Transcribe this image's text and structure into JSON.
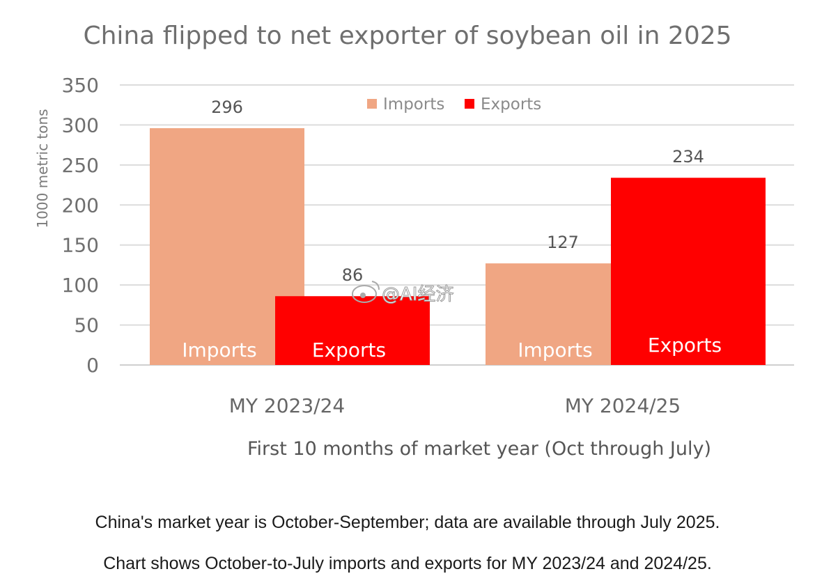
{
  "chart_data": {
    "type": "bar",
    "title": "China flipped to net exporter of soybean oil in 2025",
    "xlabel": "First 10 months of market year (Oct through July)",
    "ylabel": "1000 metric tons",
    "categories": [
      "MY 2023/24",
      "MY 2024/25"
    ],
    "series": [
      {
        "name": "Imports",
        "values": [
          296,
          127
        ],
        "color": "#f0a683"
      },
      {
        "name": "Exports",
        "values": [
          86,
          234
        ],
        "color": "#ff0000"
      }
    ],
    "in_bar_labels": [
      "Imports",
      "Exports"
    ],
    "ylim": [
      0,
      350
    ],
    "yticks": [
      0,
      50,
      100,
      150,
      200,
      250,
      300,
      350
    ],
    "grid": true,
    "legend_position": "top-center",
    "watermark": "@AI经济"
  },
  "notes": {
    "line1": "China's market year is October-September; data are available through July 2025.",
    "line2": "Chart shows October-to-July imports and exports for MY 2023/24 and 2024/25."
  }
}
